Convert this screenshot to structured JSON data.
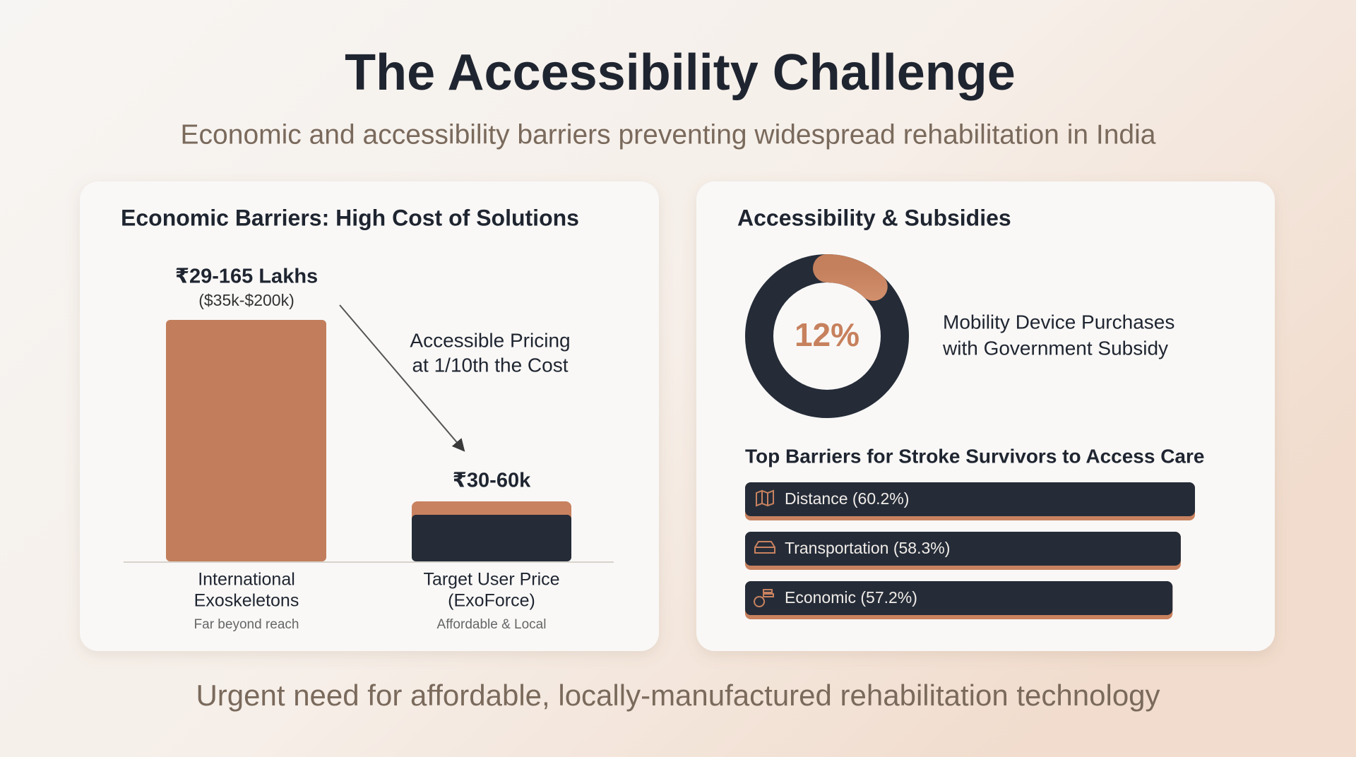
{
  "header": {
    "title": "The Accessibility Challenge",
    "subtitle": "Economic and accessibility barriers preventing widespread rehabilitation in India"
  },
  "cost_card": {
    "title": "Economic Barriers: High Cost of Solutions",
    "annotation": [
      "Accessible Pricing",
      "at 1/10th the Cost"
    ],
    "items": [
      {
        "price": "₹29-165 Lakhs",
        "usd": "($35k-$200k)",
        "label": [
          "International",
          "Exoskeletons"
        ],
        "note": "Far beyond reach"
      },
      {
        "price": "₹30-60k",
        "label": [
          "Target User Price",
          "(ExoForce)"
        ],
        "note": "Affordable & Local"
      }
    ]
  },
  "access_card": {
    "title": "Accessibility & Subsidies",
    "subsidy": {
      "value": 12,
      "value_label": "12%",
      "label": [
        "Mobility Device Purchases",
        "with Government Subsidy"
      ]
    },
    "barriers": {
      "title": "Top Barriers for Stroke Survivors to Access Care",
      "values": [
        60.2,
        58.3,
        57.2
      ],
      "value_labels": [
        "Distance (60.2%)",
        "Transportation (58.3%)",
        "Economic (57.2%)"
      ]
    }
  },
  "footer": "Urgent need for affordable, locally-manufactured rehabilitation technology"
}
